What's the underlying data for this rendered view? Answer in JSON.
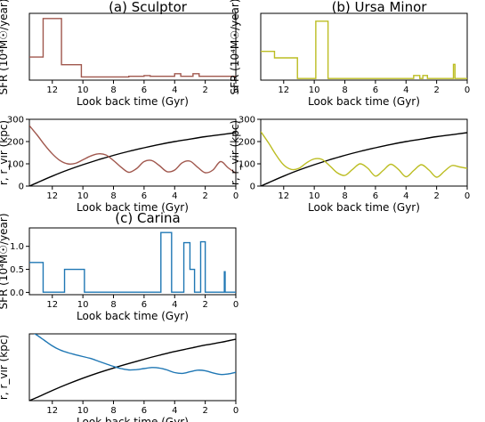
{
  "panels": [
    {
      "title": "(a) Sculptor",
      "sfr": {
        "color": "#a0574d",
        "xlabel": "Look back time (Gyr)",
        "ylabel": "SFR (10⁴M☉/year)",
        "xlim": [
          13.5,
          0
        ],
        "ylim": [
          -0.02,
          0.5
        ],
        "xticks": [
          12,
          10,
          8,
          6,
          4,
          2,
          0
        ],
        "yticks": [],
        "steps": [
          [
            13.5,
            0.16
          ],
          [
            12.6,
            0.46
          ],
          [
            11.4,
            0.1
          ],
          [
            10.1,
            0.005
          ],
          [
            7.0,
            0.01
          ],
          [
            6.0,
            0.015
          ],
          [
            5.6,
            0.01
          ],
          [
            4.0,
            0.03
          ],
          [
            3.6,
            0.01
          ],
          [
            2.8,
            0.03
          ],
          [
            2.4,
            0.01
          ],
          [
            1.5,
            0.01
          ],
          [
            0,
            0.01
          ]
        ]
      },
      "orbit": {
        "xlabel": "Look back time (Gyr)",
        "ylabel": "r, r_vir (kpc)",
        "xlim": [
          13.5,
          0
        ],
        "ylim": [
          0,
          300
        ],
        "xticks": [
          12,
          10,
          8,
          6,
          4,
          2,
          0
        ],
        "yticks": [
          0,
          100,
          200,
          300
        ],
        "r": {
          "color": "#a0574d",
          "x": [
            13.5,
            13,
            12.5,
            12,
            11.5,
            11,
            10.5,
            10,
            9.5,
            9,
            8.5,
            8,
            7.5,
            7,
            6.5,
            6,
            5.5,
            5,
            4.5,
            4,
            3.5,
            3,
            2.5,
            2,
            1.5,
            1,
            0.5,
            0
          ],
          "y": [
            272,
            230,
            185,
            145,
            115,
            100,
            102,
            118,
            135,
            145,
            140,
            115,
            85,
            62,
            78,
            110,
            115,
            92,
            65,
            72,
            105,
            112,
            85,
            60,
            72,
            110,
            82,
            58
          ]
        },
        "rvir": {
          "color": "#000000",
          "x": [
            13.5,
            13,
            12,
            11,
            10,
            9,
            8,
            7,
            6,
            5,
            4,
            3,
            2,
            1,
            0
          ],
          "y": [
            0,
            15,
            45,
            72,
            96,
            118,
            138,
            156,
            172,
            187,
            200,
            211,
            222,
            231,
            240
          ]
        }
      }
    },
    {
      "title": "(b) Ursa Minor",
      "sfr": {
        "color": "#bcbd22",
        "xlabel": "Look back time (Gyr)",
        "ylabel": "SFR (10⁴M☉/year)",
        "xlim": [
          13.5,
          0
        ],
        "ylim": [
          -0.02,
          1.0
        ],
        "xticks": [
          12,
          10,
          8,
          6,
          4,
          2,
          0
        ],
        "yticks": [],
        "steps": [
          [
            13.5,
            0.42
          ],
          [
            12.6,
            0.32
          ],
          [
            11.1,
            0.005
          ],
          [
            9.9,
            0.88
          ],
          [
            9.1,
            0.005
          ],
          [
            3.5,
            0.05
          ],
          [
            3.1,
            0.005
          ],
          [
            2.9,
            0.05
          ],
          [
            2.6,
            0.005
          ],
          [
            0.9,
            0.22
          ],
          [
            0.8,
            0.005
          ],
          [
            0,
            0.005
          ]
        ]
      },
      "orbit": {
        "xlabel": "Look back time (Gyr)",
        "ylabel": "r, r_vir (kpc)",
        "xlim": [
          13.5,
          0
        ],
        "ylim": [
          0,
          300
        ],
        "xticks": [
          12,
          10,
          8,
          6,
          4,
          2,
          0
        ],
        "yticks": [
          0,
          100,
          200,
          300
        ],
        "r": {
          "color": "#bcbd22",
          "x": [
            13.5,
            13,
            12.5,
            12,
            11.5,
            11,
            10.5,
            10,
            9.5,
            9,
            8.5,
            8,
            7.5,
            7,
            6.5,
            6,
            5.5,
            5,
            4.5,
            4,
            3.5,
            3,
            2.5,
            2,
            1.5,
            1,
            0.5,
            0
          ],
          "y": [
            245,
            195,
            140,
            95,
            75,
            80,
            105,
            122,
            120,
            92,
            60,
            48,
            75,
            100,
            80,
            45,
            70,
            98,
            75,
            42,
            70,
            96,
            72,
            40,
            66,
            92,
            86,
            80
          ]
        },
        "rvir": {
          "color": "#000000",
          "x": [
            13.5,
            13,
            12,
            11,
            10,
            9,
            8,
            7,
            6,
            5,
            4,
            3,
            2,
            1,
            0
          ],
          "y": [
            0,
            15,
            45,
            72,
            96,
            118,
            138,
            156,
            172,
            187,
            200,
            211,
            222,
            231,
            240
          ]
        }
      }
    },
    {
      "title": "(c) Carina",
      "sfr": {
        "color": "#1f77b4",
        "xlabel": "Look back time (Gyr)",
        "ylabel": "SFR (10⁴M☉/year)",
        "xlim": [
          13.5,
          0
        ],
        "ylim": [
          -0.05,
          1.4
        ],
        "xticks": [
          12,
          10,
          8,
          6,
          4,
          2,
          0
        ],
        "yticks": [
          0.0,
          0.5,
          1.0
        ],
        "steps": [
          [
            13.5,
            0.65
          ],
          [
            12.6,
            0.005
          ],
          [
            11.2,
            0.5
          ],
          [
            9.9,
            0.005
          ],
          [
            4.9,
            1.3
          ],
          [
            4.2,
            0.005
          ],
          [
            3.4,
            1.08
          ],
          [
            3.0,
            0.5
          ],
          [
            2.8,
            0.5
          ],
          [
            2.7,
            0.005
          ],
          [
            2.3,
            1.1
          ],
          [
            2.0,
            0.005
          ],
          [
            0.75,
            0.45
          ],
          [
            0.7,
            0.005
          ],
          [
            0,
            0.005
          ]
        ]
      },
      "orbit": {
        "xlabel": "Look back time (Gyr)",
        "ylabel": "r, r_vir (kpc)",
        "xlim": [
          13.5,
          0
        ],
        "ylim": [
          0,
          250
        ],
        "xticks": [
          12,
          10,
          8,
          6,
          4,
          2,
          0
        ],
        "yticks": [],
        "r": {
          "color": "#1f77b4",
          "x": [
            13.5,
            13,
            12.5,
            12,
            11.5,
            11,
            10.5,
            10,
            9.5,
            9,
            8.5,
            8,
            7.5,
            7,
            6.5,
            6,
            5.5,
            5,
            4.5,
            4,
            3.5,
            3,
            2.5,
            2,
            1.5,
            1,
            0.5,
            0
          ],
          "y": [
            262,
            245,
            225,
            205,
            190,
            180,
            172,
            165,
            158,
            148,
            138,
            128,
            120,
            115,
            116,
            120,
            124,
            122,
            115,
            105,
            102,
            108,
            114,
            112,
            104,
            98,
            100,
            106
          ]
        },
        "rvir": {
          "color": "#000000",
          "x": [
            13.5,
            13,
            12,
            11,
            10,
            9,
            8,
            7,
            6,
            5,
            4,
            3,
            2,
            1,
            0
          ],
          "y": [
            0,
            12,
            38,
            62,
            84,
            104,
            122,
            139,
            155,
            170,
            184,
            196,
            208,
            218,
            230
          ]
        }
      }
    }
  ]
}
